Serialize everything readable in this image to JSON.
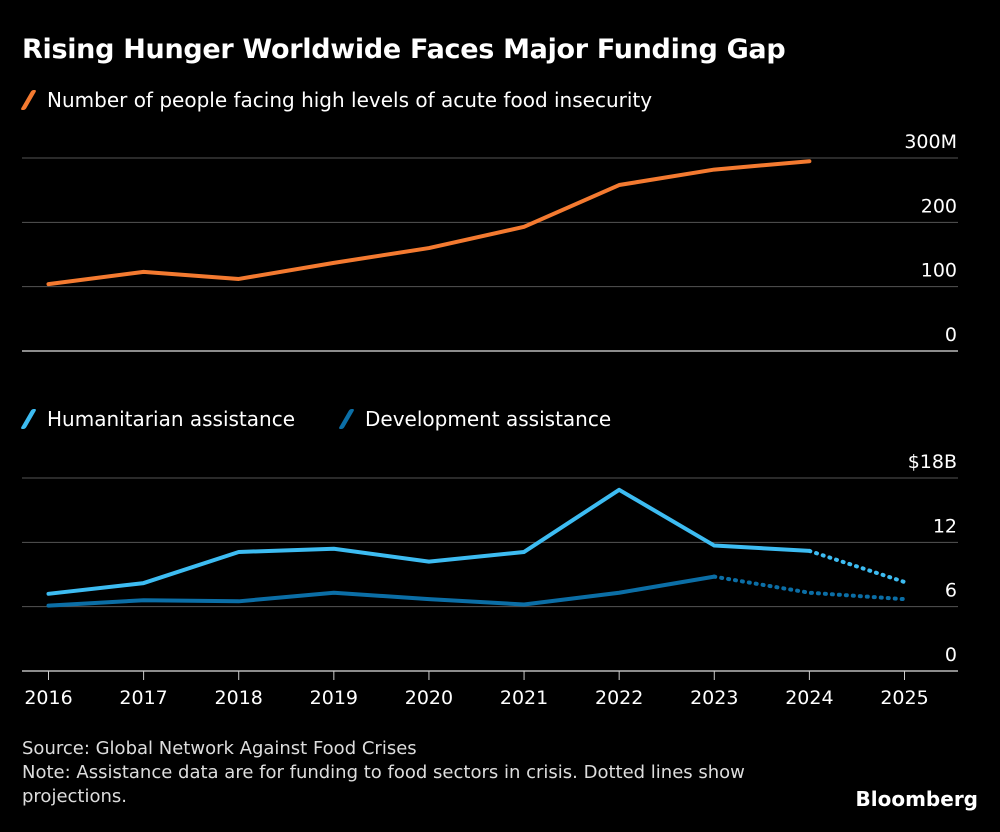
{
  "chart_data": [
    {
      "type": "line",
      "title": "Rising Hunger Worldwide Faces Major Funding Gap",
      "x": [
        2016,
        2017,
        2018,
        2019,
        2020,
        2021,
        2022,
        2023,
        2024
      ],
      "series": [
        {
          "name": "Number of people facing high levels of acute food insecurity",
          "color": "#f47a30",
          "values": [
            104,
            123,
            112,
            137,
            160,
            193,
            258,
            282,
            295
          ]
        }
      ],
      "ylim": [
        0,
        300
      ],
      "yticks": [
        0,
        100,
        200,
        300
      ],
      "ytick_labels": [
        "0",
        "100",
        "200",
        "300M"
      ],
      "grid": true
    },
    {
      "type": "line",
      "x": [
        2016,
        2017,
        2018,
        2019,
        2020,
        2021,
        2022,
        2023,
        2024,
        2025
      ],
      "xtick_labels": [
        "2016",
        "2017",
        "2018",
        "2019",
        "2020",
        "2021",
        "2022",
        "2023",
        "2024",
        "2025"
      ],
      "series": [
        {
          "name": "Humanitarian assistance",
          "color": "#3dbcf2",
          "values": [
            7.2,
            8.2,
            11.1,
            11.4,
            10.2,
            11.1,
            16.9,
            11.7,
            11.2,
            8.3
          ],
          "projection_from": 2024
        },
        {
          "name": "Development assistance",
          "color": "#0b6ea6",
          "values": [
            6.1,
            6.6,
            6.5,
            7.3,
            6.7,
            6.2,
            7.3,
            8.8,
            7.3,
            6.7
          ],
          "projection_from": 2023
        }
      ],
      "ylim": [
        0,
        18
      ],
      "yticks": [
        0,
        6,
        12,
        18
      ],
      "ytick_labels": [
        "0",
        "6",
        "12",
        "$18B"
      ],
      "grid": true
    }
  ],
  "footer": {
    "source": "Source: Global Network Against Food Crises",
    "note": "Note: Assistance data are for funding to food sectors in crisis. Dotted lines show projections."
  },
  "brand": "Bloomberg"
}
